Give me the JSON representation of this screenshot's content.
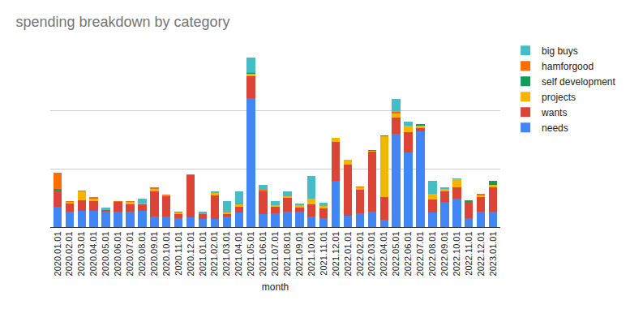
{
  "chart_data": {
    "type": "bar",
    "title": "spending breakdown by category",
    "x_label": "month",
    "stacked": true,
    "grid": true,
    "legend": "right",
    "tick_labels": "x",
    "ylim": [
      0,
      3
    ],
    "yticks": [
      0,
      1,
      2,
      3
    ],
    "categories": [
      "2020.01.01",
      "2020.02.01",
      "2020.03.01",
      "2020.04.01",
      "2020.05.01",
      "2020.06.01",
      "2020.07.01",
      "2020.08.01",
      "2020.09.01",
      "2020.10.01",
      "2020.11.01",
      "2020.12.01",
      "2021.01.01",
      "2021.02.01",
      "2021.03.01",
      "2021.04.01",
      "2021.05.01",
      "2021.06.01",
      "2021.07.01",
      "2021.08.01",
      "2021.09.01",
      "2021.10.01",
      "2021.11.01",
      "2021.12.01",
      "2022.01.01",
      "2022.02.01",
      "2022.03.01",
      "2022.04.01",
      "2022.05.01",
      "2022.06.01",
      "2022.07.01",
      "2022.08.01",
      "2022.09.01",
      "2022.10.01",
      "2022.11.01",
      "2022.12.01",
      "2023.01.01"
    ],
    "series": [
      {
        "name": "needs",
        "color": "#4285f4",
        "values": [
          0.35,
          0.26,
          0.28,
          0.28,
          0.26,
          0.26,
          0.26,
          0.28,
          0.18,
          0.18,
          0.15,
          0.17,
          0.14,
          0.14,
          0.18,
          0.25,
          2.22,
          0.22,
          0.24,
          0.26,
          0.26,
          0.18,
          0.15,
          0.79,
          0.19,
          0.24,
          0.26,
          0.12,
          1.61,
          1.28,
          1.64,
          0.25,
          0.43,
          0.49,
          0.15,
          0.26,
          0.26
        ]
      },
      {
        "name": "wants",
        "color": "#db4437",
        "values": [
          0.28,
          0.14,
          0.18,
          0.17,
          0.04,
          0.17,
          0.13,
          0.11,
          0.44,
          0.35,
          0.07,
          0.72,
          0.08,
          0.4,
          0.04,
          0.1,
          0.38,
          0.39,
          0.11,
          0.24,
          0.08,
          0.21,
          0.17,
          0.67,
          0.89,
          0.4,
          1.04,
          0.4,
          0.28,
          0.35,
          0.06,
          0.22,
          0.18,
          0.19,
          0.28,
          0.25,
          0.43
        ]
      },
      {
        "name": "projects",
        "color": "#f4b400",
        "values": [
          0,
          0.03,
          0.15,
          0.04,
          0,
          0,
          0.04,
          0.02,
          0.04,
          0.01,
          0.03,
          0,
          0.01,
          0.04,
          0.03,
          0.04,
          0.04,
          0.01,
          0.03,
          0.03,
          0.03,
          0.1,
          0.04,
          0.07,
          0.08,
          0.04,
          0.01,
          1.04,
          0.06,
          0.11,
          0.04,
          0.1,
          0.04,
          0.14,
          0,
          0.04,
          0.03
        ]
      },
      {
        "name": "self development",
        "color": "#0f9d58",
        "values": [
          0.02,
          0,
          0,
          0,
          0,
          0,
          0,
          0,
          0,
          0,
          0,
          0.01,
          0,
          0,
          0,
          0,
          0.01,
          0,
          0,
          0,
          0,
          0,
          0,
          0,
          0,
          0,
          0.01,
          0.01,
          0,
          0,
          0.03,
          0,
          0,
          0,
          0.03,
          0,
          0.08
        ]
      },
      {
        "name": "hamforgood",
        "color": "#ff6d01",
        "values": [
          0.29,
          0.01,
          0.02,
          0.02,
          0,
          0.01,
          0.02,
          0,
          0.02,
          0.02,
          0.01,
          0.01,
          0,
          0.01,
          0,
          0.01,
          0.01,
          0.02,
          0,
          0,
          0,
          0,
          0,
          0.01,
          0,
          0.02,
          0,
          0.01,
          0.03,
          0,
          0,
          0,
          0,
          0.01,
          0,
          0.02,
          0
        ]
      },
      {
        "name": "big buys",
        "color": "#46bdc6",
        "values": [
          0,
          0,
          0,
          0,
          0.03,
          0,
          0,
          0.08,
          0,
          0,
          0,
          0,
          0.04,
          0.03,
          0.19,
          0.22,
          0.25,
          0.08,
          0.07,
          0.08,
          0.04,
          0.39,
          0.06,
          0,
          0,
          0,
          0,
          0,
          0.22,
          0.07,
          0,
          0.22,
          0.04,
          0.01,
          0,
          0,
          0
        ]
      }
    ]
  }
}
